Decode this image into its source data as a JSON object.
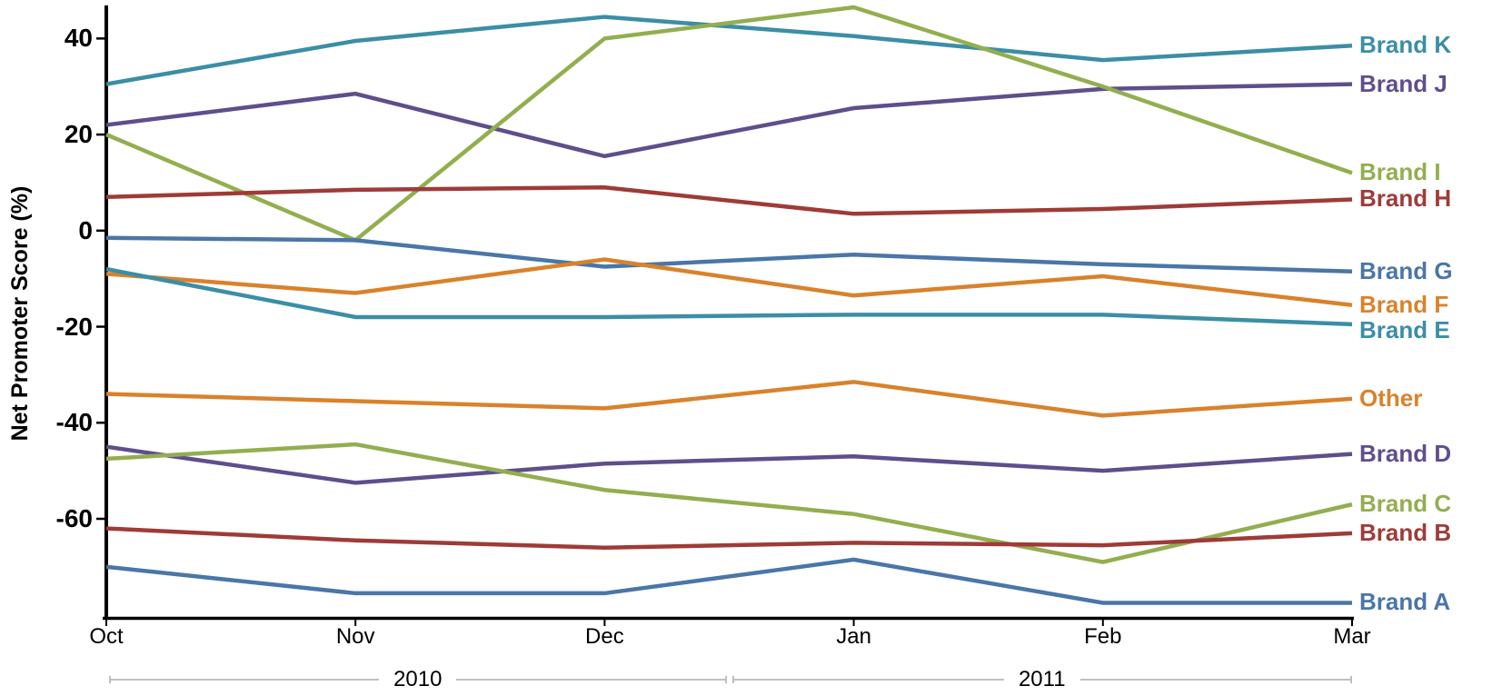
{
  "chart_data": {
    "type": "line",
    "title": "",
    "xlabel": "",
    "ylabel": "Net Promoter Score (%)",
    "x_categories": [
      "Oct",
      "Nov",
      "Dec",
      "Jan",
      "Feb",
      "Mar"
    ],
    "x_groups": [
      {
        "label": "2010",
        "from_index": 0,
        "to_index": 2
      },
      {
        "label": "2011",
        "from_index": 3,
        "to_index": 5
      }
    ],
    "y_ticks": [
      40,
      20,
      0,
      -20,
      -40,
      -60
    ],
    "ylim": [
      -81,
      46.5
    ],
    "grid": false,
    "legend_position": "right-end-labels",
    "axis_color": "#000000",
    "bracket_color": "#BFBFBF",
    "series": [
      {
        "name": "Brand K",
        "color": "#3B8EA5",
        "values": [
          30.5,
          39.5,
          44.5,
          40.5,
          35.5,
          38.5
        ]
      },
      {
        "name": "Brand J",
        "color": "#5F4E8C",
        "values": [
          22,
          28.5,
          15.5,
          25.5,
          29.5,
          30.5
        ]
      },
      {
        "name": "Brand I",
        "color": "#93AE4F",
        "values": [
          20,
          -2,
          40,
          46.5,
          30,
          12
        ]
      },
      {
        "name": "Brand H",
        "color": "#9E3B38",
        "values": [
          7,
          8.5,
          9,
          3.5,
          4.5,
          6.5
        ]
      },
      {
        "name": "Brand G",
        "color": "#4A76A8",
        "values": [
          -1.5,
          -2,
          -7.5,
          -5,
          -7,
          -8.5
        ]
      },
      {
        "name": "Brand F",
        "color": "#D9822B",
        "values": [
          -9,
          -13,
          -6,
          -13.5,
          -9.5,
          -15.5
        ]
      },
      {
        "name": "Brand E",
        "color": "#3B8EA5",
        "values": [
          -8,
          -18,
          -18,
          -17.5,
          -17.5,
          -19.5
        ]
      },
      {
        "name": "Other",
        "color": "#D9822B",
        "values": [
          -34,
          -35.5,
          -37,
          -31.5,
          -38.5,
          -35
        ]
      },
      {
        "name": "Brand D",
        "color": "#5F4E8C",
        "values": [
          -45,
          -52.5,
          -48.5,
          -47,
          -50,
          -46.5
        ]
      },
      {
        "name": "Brand C",
        "color": "#93AE4F",
        "values": [
          -47.5,
          -44.5,
          -54,
          -59,
          -69,
          -57
        ]
      },
      {
        "name": "Brand B",
        "color": "#9E3B38",
        "values": [
          -62,
          -64.5,
          -66,
          -65,
          -65.5,
          -63
        ]
      },
      {
        "name": "Brand A",
        "color": "#4A76A8",
        "values": [
          -70,
          -75.5,
          -75.5,
          -68.5,
          -77.5,
          -77.5
        ]
      }
    ]
  }
}
